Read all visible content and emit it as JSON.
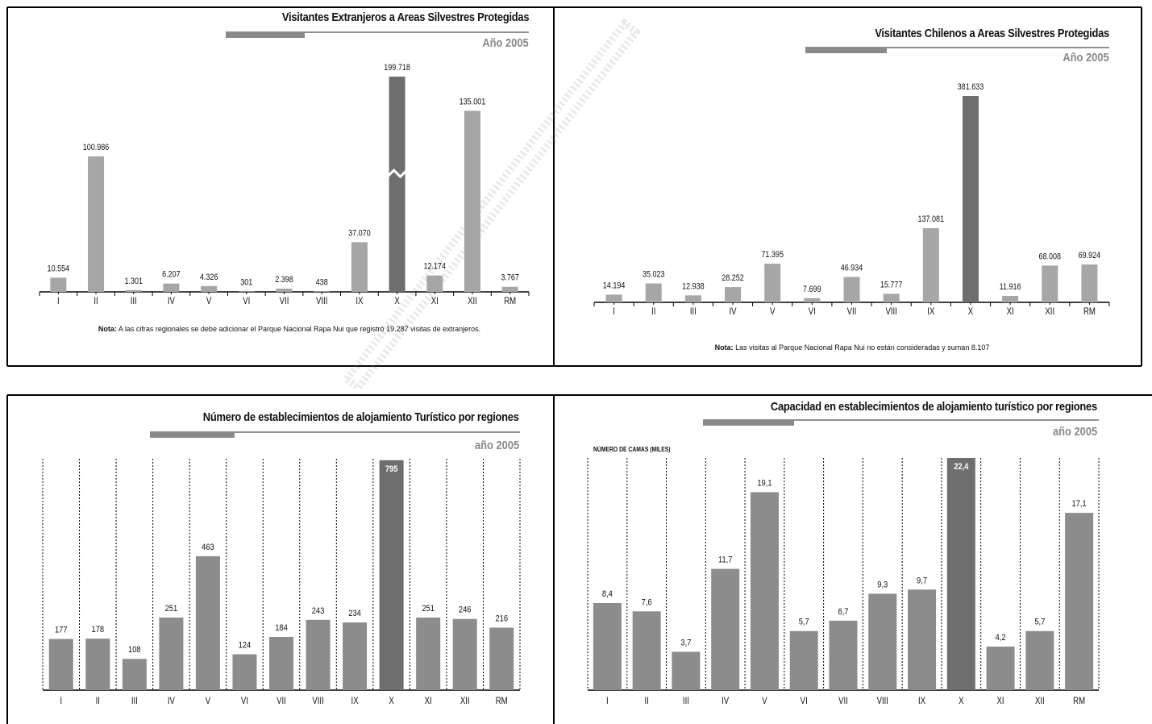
{
  "colors": {
    "bar": "#a6a6a6",
    "bar_dark": "#6e6e6e",
    "bar_mid": "#8c8c8c",
    "title_bar": "#8a8a8a",
    "frame": "#000000"
  },
  "chart_data": [
    {
      "type": "bar",
      "title": "Visitantes Extranjeros a Areas Silvestres Protegidas",
      "subtitle": "Año 2005",
      "categories": [
        "I",
        "II",
        "III",
        "IV",
        "V",
        "VI",
        "VII",
        "VIII",
        "IX",
        "X",
        "XI",
        "XII",
        "RM"
      ],
      "values": [
        10554,
        100986,
        1301,
        6207,
        4326,
        301,
        2398,
        438,
        37070,
        199718,
        12174,
        135001,
        3767
      ],
      "value_labels": [
        "10.554",
        "100.986",
        "1.301",
        "6.207",
        "4.326",
        "301",
        "2.398",
        "438",
        "37.070",
        "199.718",
        "12.174",
        "135.001",
        "3.767"
      ],
      "highlight_index": 9,
      "axis_break_index": 9,
      "note_label": "Nota:",
      "note_text": "A las cifras regionales se debe adicionar el Parque Nacional Rapa Nui que registró 19.287 visitas de extranjeros."
    },
    {
      "type": "bar",
      "title": "Visitantes Chilenos a Areas Silvestres Protegidas",
      "subtitle": "Año 2005",
      "categories": [
        "I",
        "II",
        "III",
        "IV",
        "V",
        "VI",
        "VII",
        "VIII",
        "IX",
        "X",
        "XI",
        "XII",
        "RM"
      ],
      "values": [
        14194,
        35023,
        12938,
        28252,
        71395,
        7699,
        46934,
        15777,
        137081,
        381633,
        11916,
        68008,
        69924
      ],
      "value_labels": [
        "14.194",
        "35.023",
        "12.938",
        "28.252",
        "71.395",
        "7.699",
        "46.934",
        "15.777",
        "137.081",
        "381.633",
        "11.916",
        "68.008",
        "69.924"
      ],
      "highlight_index": 9,
      "note_label": "Nota:",
      "note_text": "Las visitas al Parque Nacional Rapa Nui no están consideradas y suman 8.107"
    },
    {
      "type": "bar",
      "title": "Número de establecimientos de alojamiento Turístico por regiones",
      "subtitle": "año 2005",
      "categories": [
        "I",
        "II",
        "III",
        "IV",
        "V",
        "VI",
        "VII",
        "VIII",
        "IX",
        "X",
        "XI",
        "XII",
        "RM"
      ],
      "values": [
        177,
        178,
        108,
        251,
        463,
        124,
        184,
        243,
        234,
        795,
        251,
        246,
        216
      ],
      "value_labels": [
        "177",
        "178",
        "108",
        "251",
        "463",
        "124",
        "184",
        "243",
        "234",
        "795",
        "251",
        "246",
        "216"
      ],
      "highlight_index": 9,
      "ylim": [
        0,
        800
      ]
    },
    {
      "type": "bar",
      "title": "Capacidad en establecimientos de alojamiento turístico por regiones",
      "subtitle": "año 2005",
      "ylabel": "NÚMERO DE CAMAS (MILES)",
      "categories": [
        "I",
        "II",
        "III",
        "IV",
        "V",
        "VI",
        "VII",
        "VIII",
        "IX",
        "X",
        "XI",
        "XII",
        "RM"
      ],
      "values": [
        8.4,
        7.6,
        3.7,
        11.7,
        19.1,
        5.7,
        6.7,
        9.3,
        9.7,
        22.4,
        4.2,
        5.7,
        17.1
      ],
      "value_labels": [
        "8,4",
        "7,6",
        "3,7",
        "11,7",
        "19,1",
        "5,7",
        "6,7",
        "9,3",
        "9,7",
        "22,4",
        "4,2",
        "5,7",
        "17,1"
      ],
      "highlight_index": 9,
      "ylim": [
        0,
        22.4
      ]
    }
  ]
}
